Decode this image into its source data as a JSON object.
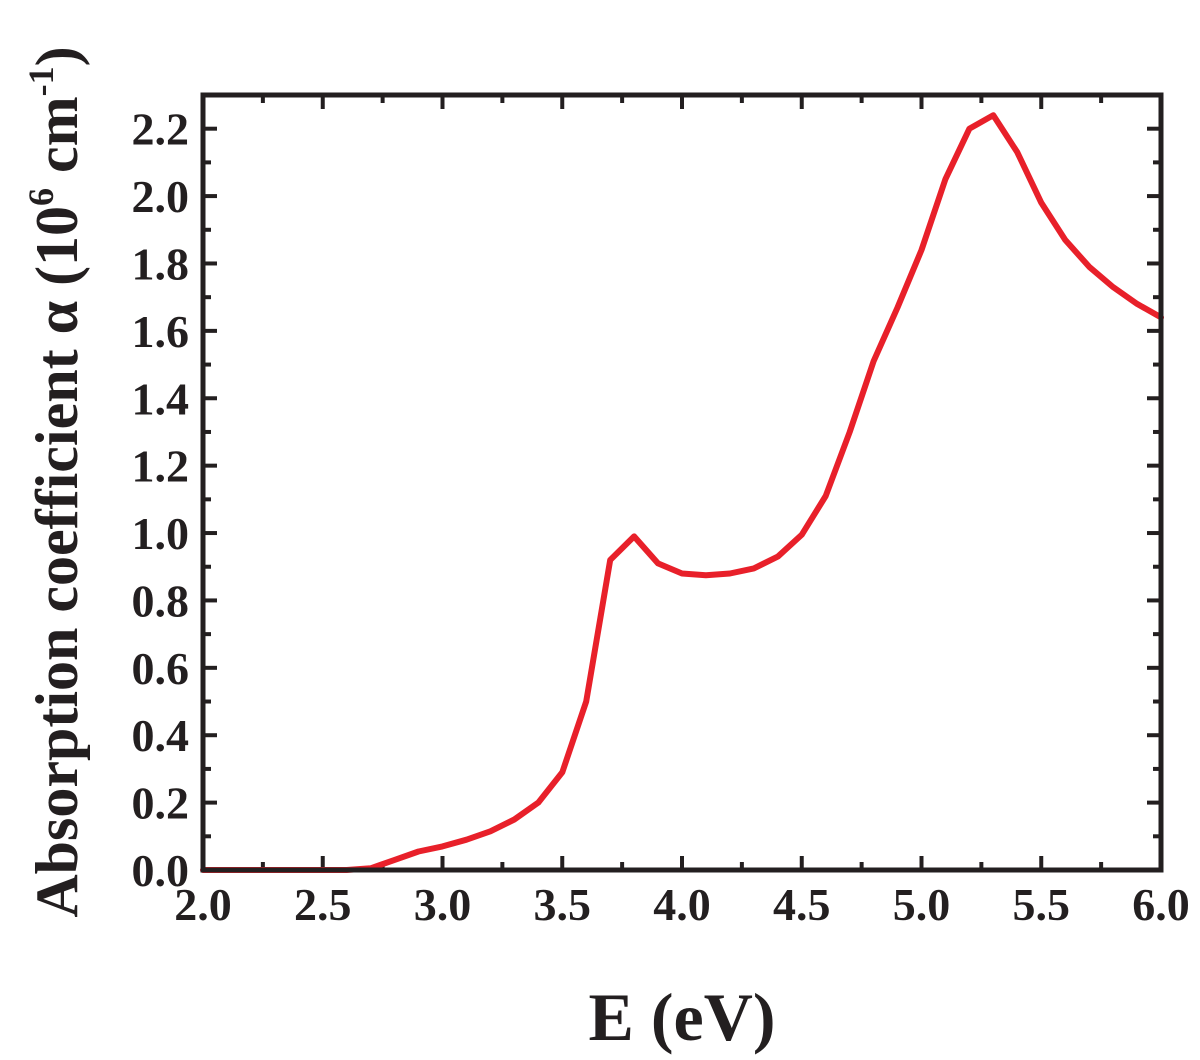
{
  "chart_data": {
    "type": "line",
    "title": "",
    "xlabel": "E (eV)",
    "ylabel": {
      "main": "Absorption coefficient α (10",
      "exp1": "6",
      "mid": " cm",
      "exp2": "-1",
      "end": ")"
    },
    "xlim": [
      2.0,
      6.0
    ],
    "ylim": [
      0.0,
      2.3
    ],
    "x_ticks": [
      2.0,
      2.5,
      3.0,
      3.5,
      4.0,
      4.5,
      5.0,
      5.5,
      6.0
    ],
    "x_tick_labels": [
      "2.0",
      "2.5",
      "3.0",
      "3.5",
      "4.0",
      "4.5",
      "5.0",
      "5.5",
      "6.0"
    ],
    "y_ticks": [
      0.0,
      0.2,
      0.4,
      0.6,
      0.8,
      1.0,
      1.2,
      1.4,
      1.6,
      1.8,
      2.0,
      2.2
    ],
    "y_tick_labels": [
      "0.0",
      "0.2",
      "0.4",
      "0.6",
      "0.8",
      "1.0",
      "1.2",
      "1.4",
      "1.6",
      "1.8",
      "2.0",
      "2.2"
    ],
    "grid": false,
    "legend": "none",
    "line_color": "#e8202a",
    "axis_color": "#231f20",
    "series": [
      {
        "x": [
          2.0,
          2.1,
          2.2,
          2.3,
          2.4,
          2.5,
          2.6,
          2.7,
          2.8,
          2.9,
          3.0,
          3.1,
          3.2,
          3.3,
          3.4,
          3.5,
          3.6,
          3.7,
          3.8,
          3.9,
          4.0,
          4.1,
          4.2,
          4.3,
          4.4,
          4.5,
          4.6,
          4.7,
          4.8,
          4.9,
          5.0,
          5.1,
          5.2,
          5.3,
          5.4,
          5.5,
          5.6,
          5.7,
          5.8,
          5.9,
          6.0
        ],
        "values": [
          0.0,
          0.0,
          0.0,
          0.0,
          0.0,
          0.0,
          0.0,
          0.005,
          0.03,
          0.055,
          0.07,
          0.09,
          0.115,
          0.15,
          0.2,
          0.29,
          0.5,
          0.92,
          0.99,
          0.91,
          0.88,
          0.875,
          0.88,
          0.895,
          0.93,
          0.995,
          1.11,
          1.3,
          1.51,
          1.67,
          1.84,
          2.05,
          2.2,
          2.24,
          2.13,
          1.98,
          1.87,
          1.79,
          1.73,
          1.68,
          1.64
        ]
      }
    ]
  }
}
